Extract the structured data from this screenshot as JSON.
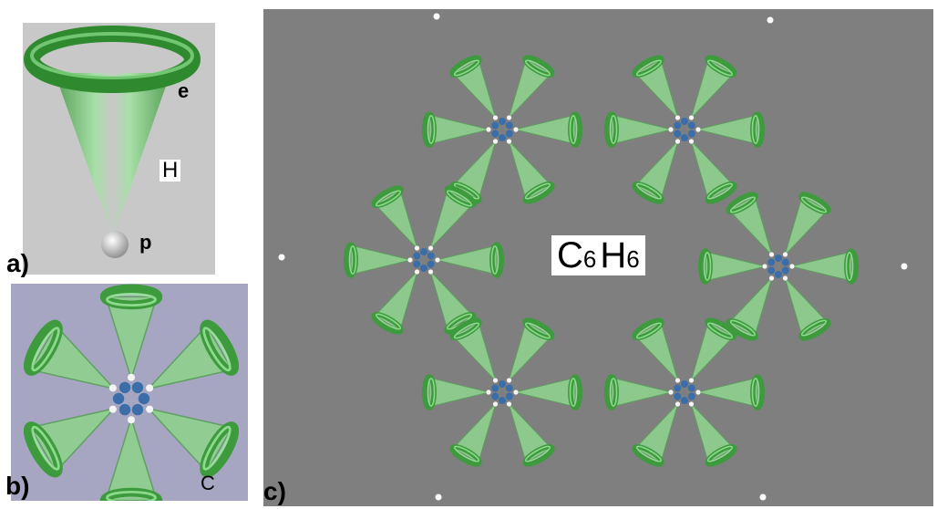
{
  "panel_a": {
    "label": "a)",
    "e": "e",
    "H": "H",
    "p": "p"
  },
  "panel_b": {
    "label": "b)",
    "C": "C"
  },
  "panel_c": {
    "label": "c)",
    "formula_c": "C",
    "formula_sub1": "6",
    "formula_h": "H",
    "formula_sub2": "6"
  },
  "colors": {
    "cone": "#8fd28f",
    "ring": "#3d9a3d",
    "carbon": "#3b6ea8",
    "hydrogen": "#f4f4f4",
    "bg_c": "#7f7f7f"
  }
}
